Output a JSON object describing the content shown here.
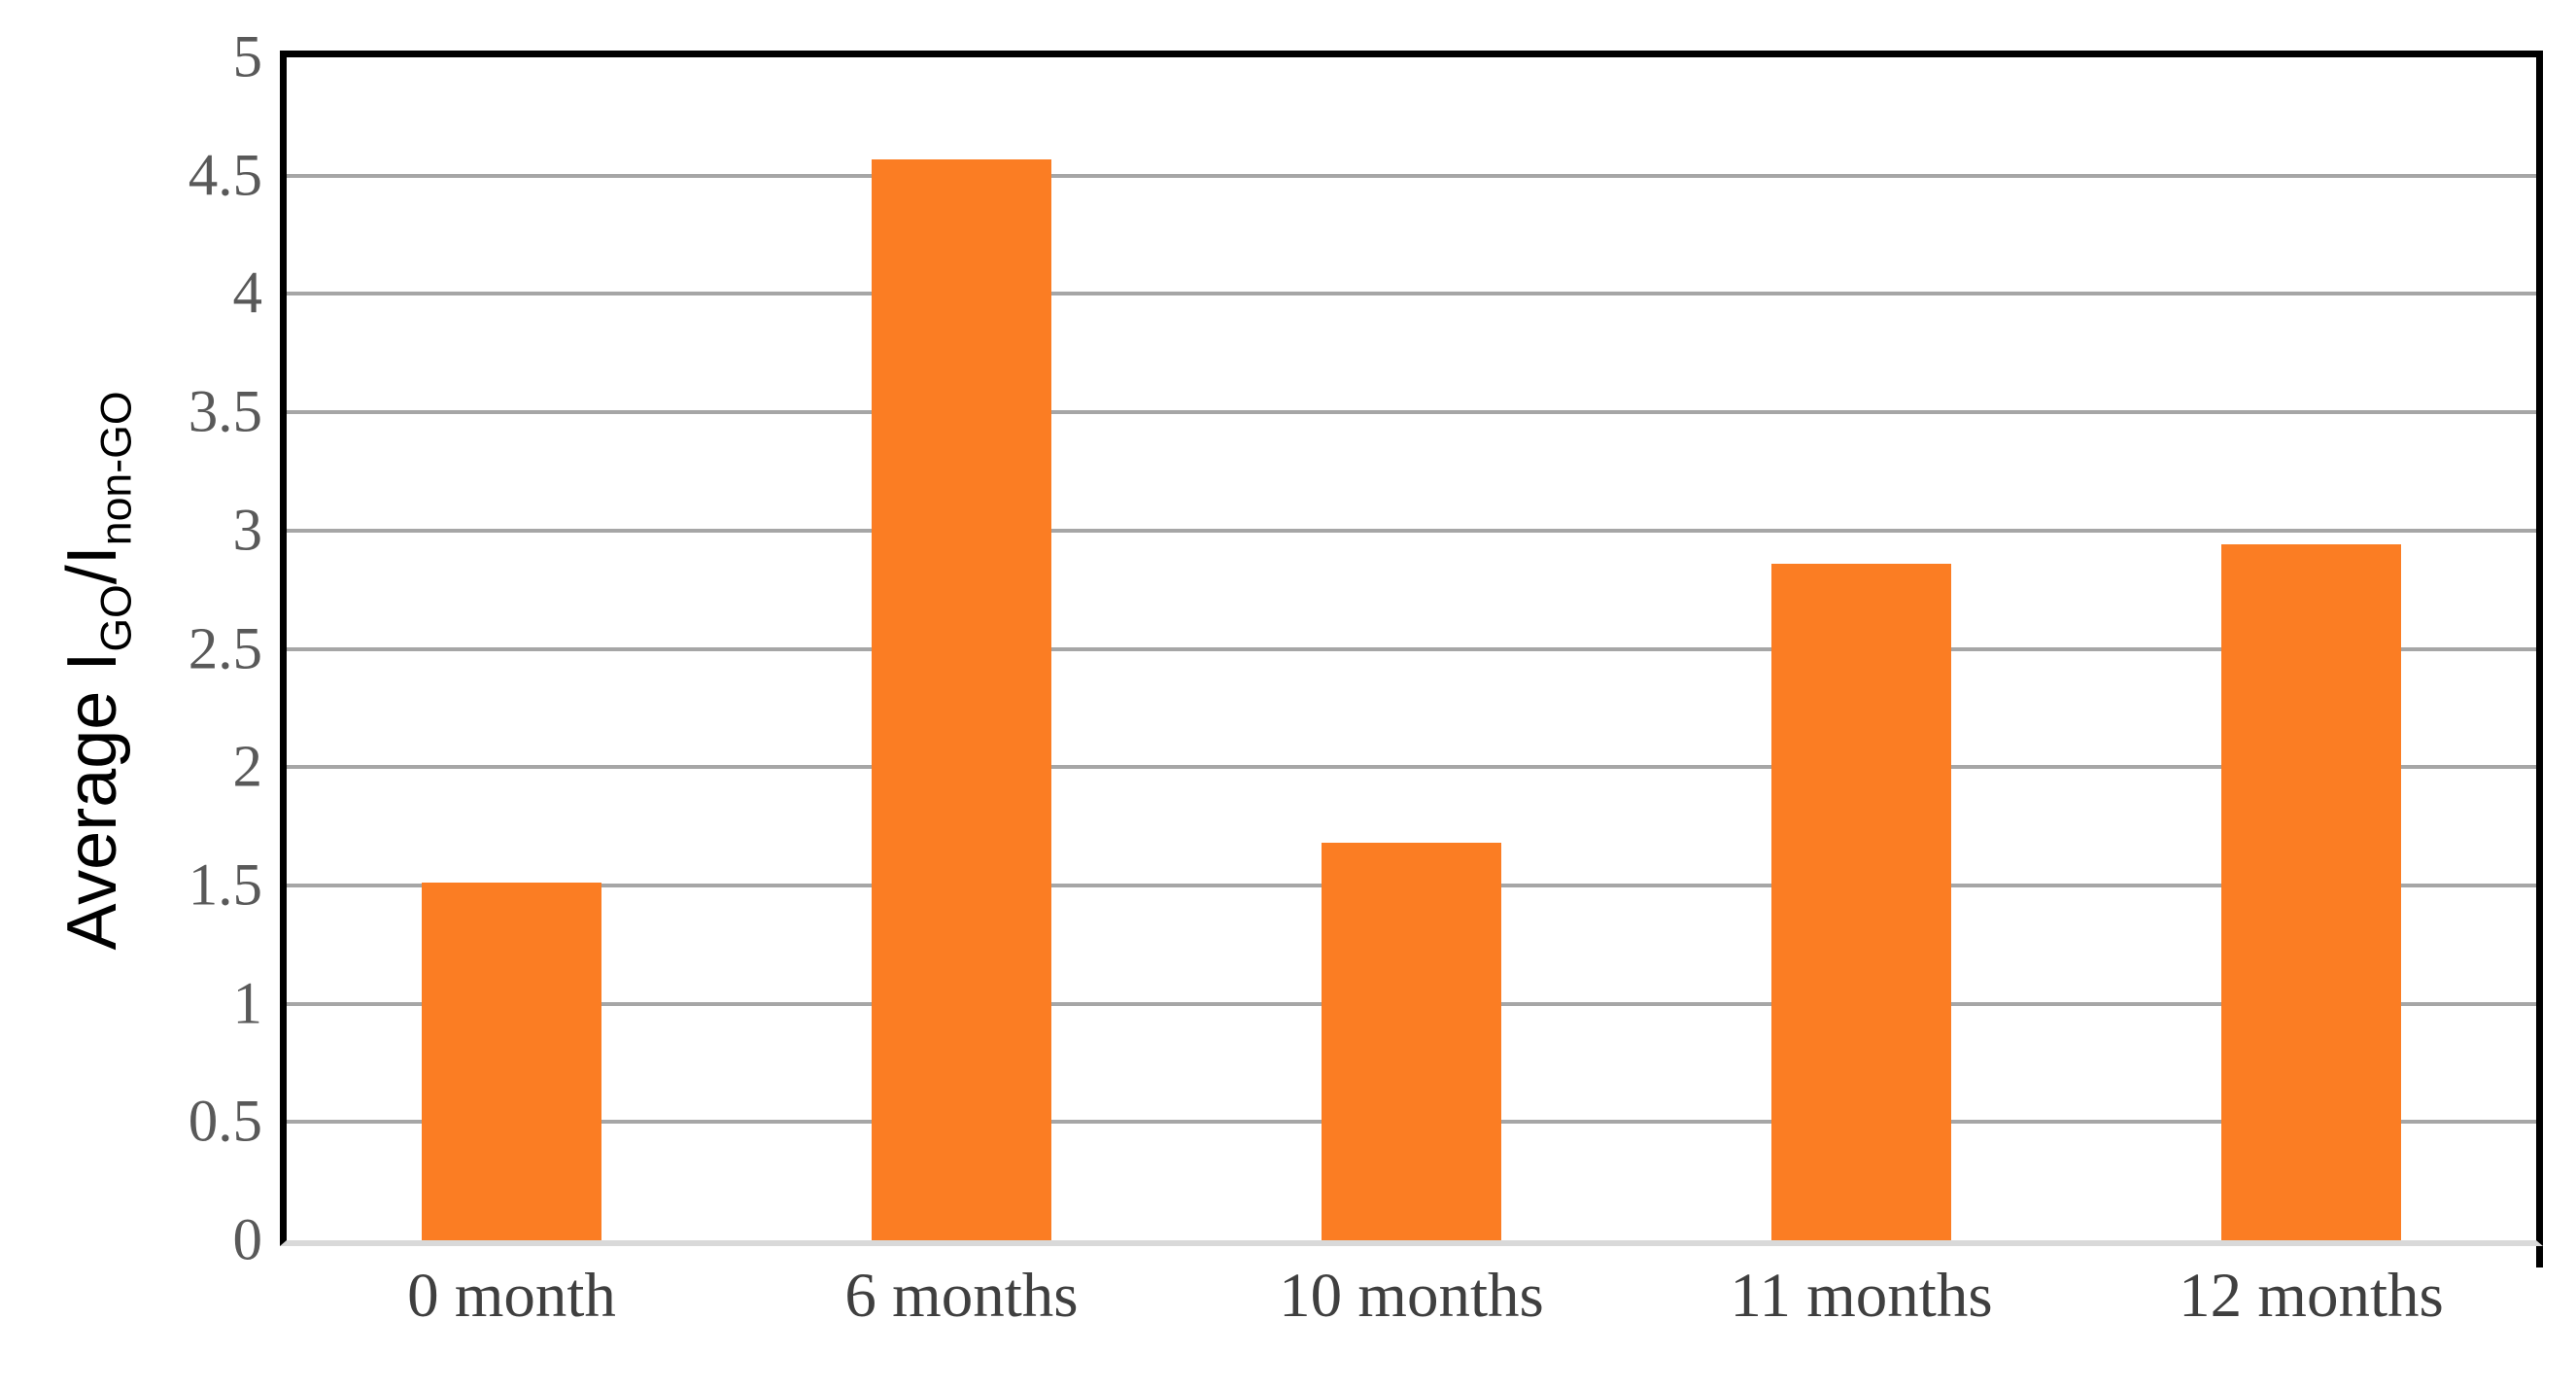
{
  "figure": {
    "type": "bar-chart",
    "title": ""
  },
  "y_axis": {
    "title_parts": {
      "prefix": "Average I",
      "sub1": "GO",
      "mid": "/I",
      "sub2": "non-GO"
    },
    "tick_labels": [
      "0",
      "0.5",
      "1",
      "1.5",
      "2",
      "2.5",
      "3",
      "3.5",
      "4",
      "4.5",
      "5"
    ]
  },
  "x_axis": {
    "categories": [
      "0 month",
      "6 months",
      "10 months",
      "11 months",
      "12 months"
    ]
  },
  "colors": {
    "bar": "#fb7d23",
    "gridline": "#a6a6a6",
    "axis_border": "#000000",
    "bottom_axis": "#d9d9d9",
    "tick_text": "#595959",
    "category_text": "#3f3f3f",
    "background": "#ffffff"
  },
  "chart_data": {
    "type": "bar",
    "categories": [
      "0 month",
      "6 months",
      "10 months",
      "11 months",
      "12 months"
    ],
    "values": [
      1.51,
      4.57,
      1.68,
      2.86,
      2.94
    ],
    "title": "",
    "xlabel": "",
    "ylabel": "Average I_GO/I_non-GO",
    "ylim": [
      0,
      5
    ],
    "ytick_step": 0.5,
    "grid": "horizontal-only",
    "legend": "none",
    "bar_width_fraction_of_slot": 0.4
  }
}
